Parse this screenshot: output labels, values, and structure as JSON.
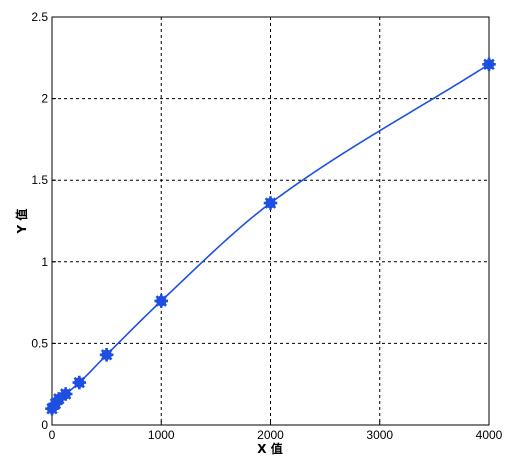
{
  "chart_data": {
    "type": "scatter",
    "xlabel": "X 值",
    "ylabel": "Y 值",
    "xlim": [
      0,
      4000
    ],
    "ylim": [
      0,
      2.5
    ],
    "x_ticks": [
      "0",
      "1000",
      "2000",
      "3000",
      "4000"
    ],
    "y_ticks": [
      "0",
      "0.5",
      "1",
      "1.5",
      "2",
      "2.5"
    ],
    "grid": true,
    "colors": {
      "series": "#1f4fe0",
      "grid": "#000000",
      "axis": "#000000"
    },
    "series": [
      {
        "x": [
          0,
          31.25,
          62.5,
          125,
          250,
          500,
          1000,
          2000,
          4000
        ],
        "y": [
          0.1,
          0.13,
          0.16,
          0.19,
          0.26,
          0.43,
          0.76,
          1.36,
          2.21
        ],
        "fit_curve": true
      }
    ]
  }
}
